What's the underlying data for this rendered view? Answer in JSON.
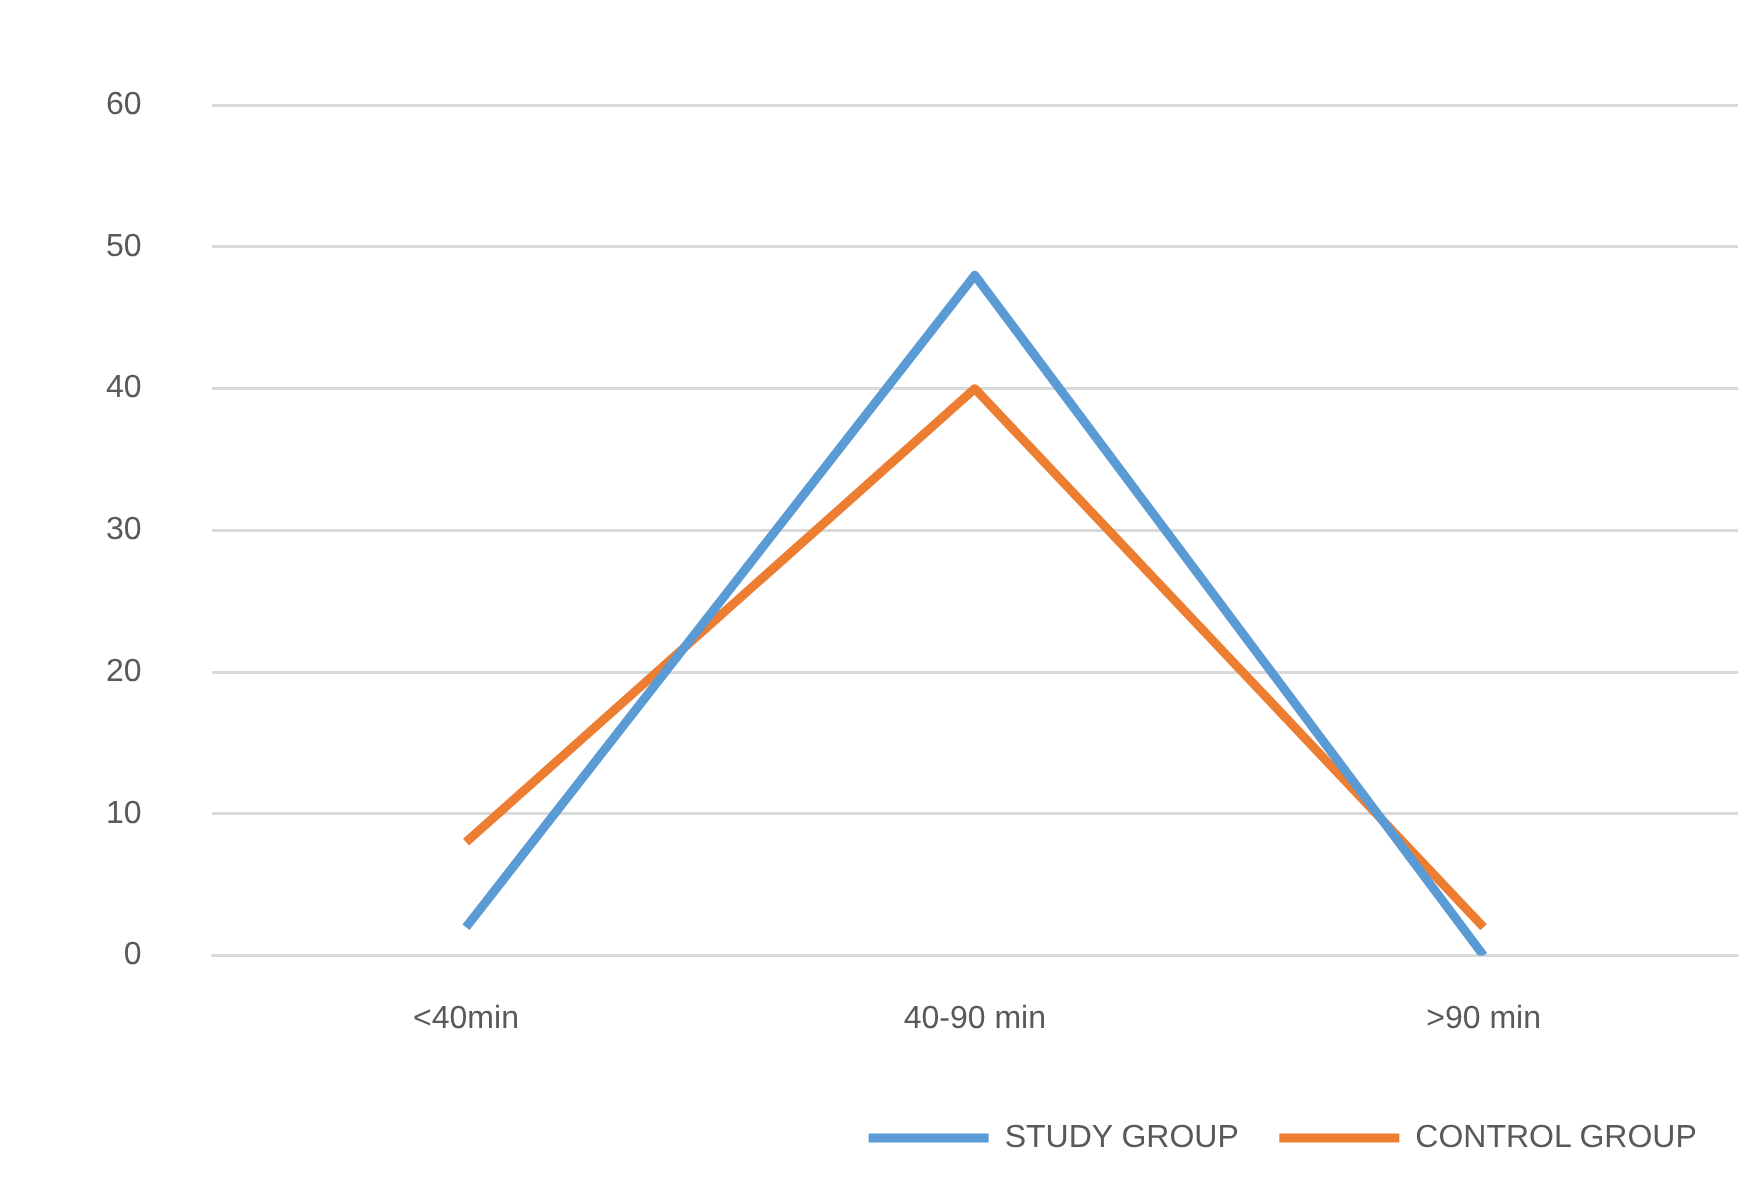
{
  "chart_data": {
    "type": "line",
    "categories": [
      "<40min",
      "40-90 min",
      ">90 min"
    ],
    "series": [
      {
        "name": "STUDY GROUP",
        "color": "#5b9bd5",
        "values": [
          2,
          48,
          0
        ]
      },
      {
        "name": "CONTROL GROUP",
        "color": "#ed7d31",
        "values": [
          8,
          40,
          2
        ]
      }
    ],
    "ylim": [
      0,
      60
    ],
    "yticks": [
      0,
      10,
      20,
      30,
      40,
      50,
      60
    ],
    "grid": "y",
    "legend": "bottom right",
    "marker": "none",
    "line_style": "solid"
  }
}
